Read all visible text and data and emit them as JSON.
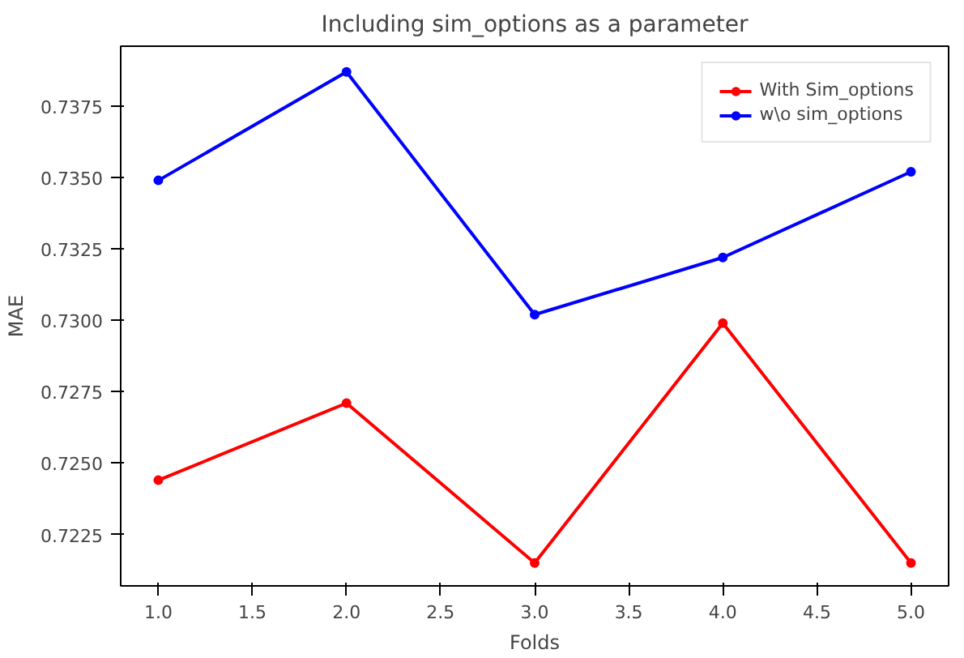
{
  "chart_data": {
    "type": "line",
    "title": "Including sim_options as a parameter",
    "xlabel": "Folds",
    "ylabel": "MAE",
    "x": [
      1,
      2,
      3,
      4,
      5
    ],
    "series": [
      {
        "name": "With Sim_options",
        "color": "#ff0000",
        "values": [
          0.7244,
          0.7271,
          0.7215,
          0.7299,
          0.7215
        ]
      },
      {
        "name": "w\\o sim_options",
        "color": "#0000ff",
        "values": [
          0.7349,
          0.7387,
          0.7302,
          0.7322,
          0.7352
        ]
      }
    ],
    "xlim": [
      0.8,
      5.2
    ],
    "ylim": [
      0.7207,
      0.7396
    ],
    "xticks": [
      {
        "value": 1,
        "label": "1.0"
      },
      {
        "value": 1.5,
        "label": "1.5"
      },
      {
        "value": 2,
        "label": "2.0"
      },
      {
        "value": 2.5,
        "label": "2.5"
      },
      {
        "value": 3,
        "label": "3.0"
      },
      {
        "value": 3.5,
        "label": "3.5"
      },
      {
        "value": 4,
        "label": "4.0"
      },
      {
        "value": 4.5,
        "label": "4.5"
      },
      {
        "value": 5,
        "label": "5.0"
      }
    ],
    "yticks": [
      {
        "value": 0.7225,
        "label": "0.7225"
      },
      {
        "value": 0.725,
        "label": "0.7250"
      },
      {
        "value": 0.7275,
        "label": "0.7275"
      },
      {
        "value": 0.73,
        "label": "0.7300"
      },
      {
        "value": 0.7325,
        "label": "0.7325"
      },
      {
        "value": 0.735,
        "label": "0.7350"
      },
      {
        "value": 0.7375,
        "label": "0.7375"
      }
    ],
    "grid": false,
    "legend": "top right",
    "marker": "circle",
    "line_style": "solid"
  }
}
